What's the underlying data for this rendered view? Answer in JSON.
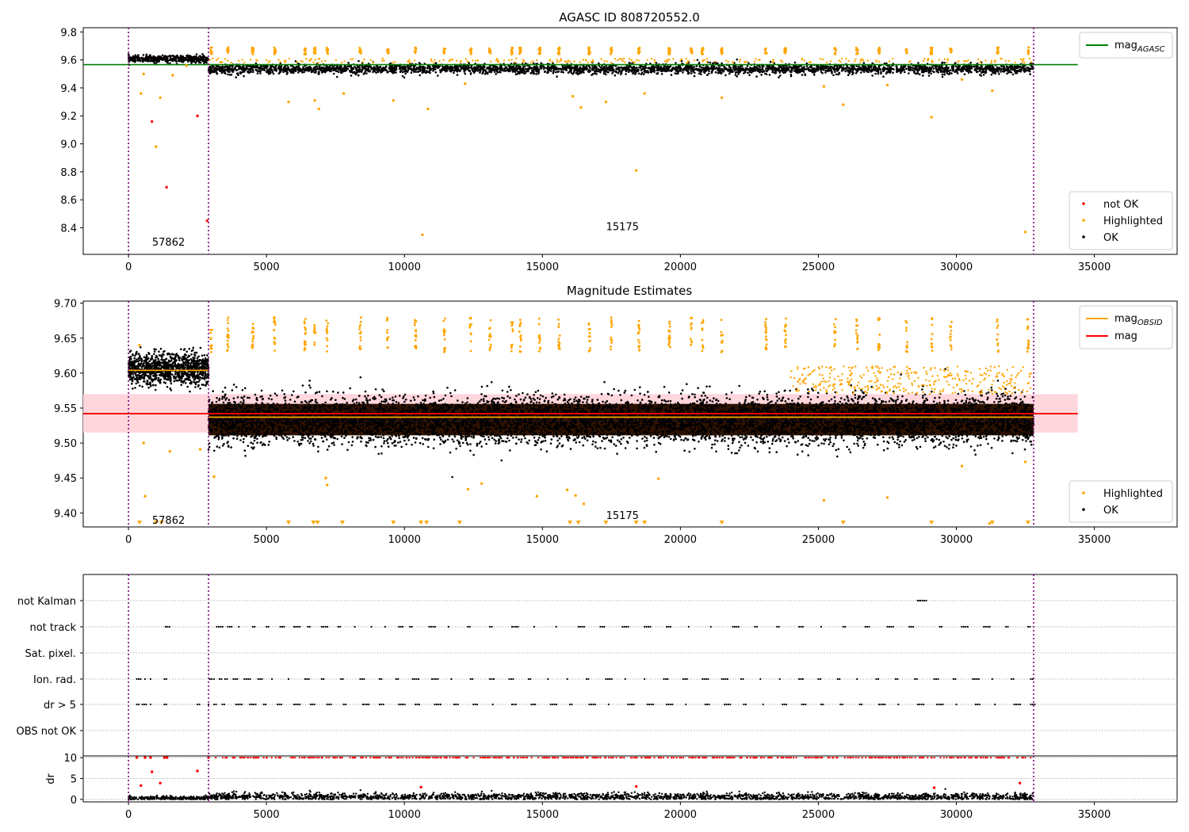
{
  "figure": {
    "title": "AGASC ID 808720552.0",
    "title_middle": "Magnitude Estimates"
  },
  "colors": {
    "ok": "#000000",
    "highlighted": "#ffa500",
    "not_ok": "#ff0000",
    "mag_agasc": "#008000",
    "mag": "#ff0000",
    "mag_obsid": "#ffa500",
    "mag_band": "#ffd6dc",
    "obs_boundary": "#800080",
    "grid": "#b0b0b0"
  },
  "chart_data": [
    {
      "id": "top",
      "type": "scatter",
      "title": "AGASC ID 808720552.0",
      "xlabel": "",
      "ylabel": "",
      "xlim": [
        -1640,
        38000
      ],
      "ylim": [
        8.21,
        9.83
      ],
      "x_ticks": [
        0,
        5000,
        10000,
        15000,
        20000,
        25000,
        30000,
        35000
      ],
      "x_tick_labels": [
        "0",
        "5000",
        "10000",
        "15000",
        "20000",
        "25000",
        "30000",
        "35000"
      ],
      "y_ticks": [
        8.4,
        8.6,
        8.8,
        9.0,
        9.2,
        9.4,
        9.6,
        9.8
      ],
      "y_tick_labels": [
        "8.4",
        "8.6",
        "8.8",
        "9.0",
        "9.2",
        "9.4",
        "9.6",
        "9.8"
      ],
      "obs_boundaries": [
        0,
        2900,
        32800
      ],
      "obs_labels": [
        {
          "text": "57862",
          "x": 1450,
          "y": 8.3
        },
        {
          "text": "15175",
          "x": 17900,
          "y": 8.41
        }
      ],
      "lines": [
        {
          "name": "mag_AGASC",
          "color": "#008000",
          "y": 9.566,
          "x0": -1640,
          "x1": 34400
        }
      ],
      "legend_lines": {
        "position": "top-right",
        "entries": [
          {
            "label": "mag",
            "sub": "AGASC",
            "color": "#008000"
          }
        ]
      },
      "legend_points": {
        "position": "bottom-right",
        "entries": [
          {
            "label": "not OK",
            "color": "#ff0000"
          },
          {
            "label": "Highlighted",
            "color": "#ffa500"
          },
          {
            "label": "OK",
            "color": "#000000"
          }
        ]
      },
      "clouds": [
        {
          "series": "OK",
          "x0": 0,
          "x1": 2900,
          "center": 9.607,
          "spread": 0.012,
          "count": 420
        },
        {
          "series": "OK",
          "x0": 2900,
          "x1": 32800,
          "center": 9.535,
          "spread": 0.018,
          "count": 3200
        }
      ],
      "highlight_clusters_y": [
        9.64,
        9.69
      ],
      "highlight_clusters_x": [
        3000,
        3600,
        4500,
        5300,
        6400,
        6750,
        7200,
        8400,
        9400,
        10400,
        11450,
        12400,
        13100,
        13900,
        14200,
        14900,
        15600,
        16700,
        17500,
        18500,
        19600,
        20400,
        20800,
        21500,
        23100,
        23800,
        25600,
        26400,
        27200,
        28200,
        29100,
        29800,
        31500,
        32600
      ],
      "points": [
        {
          "series": "not OK",
          "x": 850,
          "y": 9.16
        },
        {
          "series": "not OK",
          "x": 1380,
          "y": 8.69
        },
        {
          "series": "not OK",
          "x": 2500,
          "y": 9.2
        },
        {
          "series": "not OK",
          "x": 2850,
          "y": 8.45
        },
        {
          "series": "Highlighted",
          "x": 450,
          "y": 9.36
        },
        {
          "series": "Highlighted",
          "x": 550,
          "y": 9.5
        },
        {
          "series": "Highlighted",
          "x": 1000,
          "y": 8.98
        },
        {
          "series": "Highlighted",
          "x": 1150,
          "y": 9.33
        },
        {
          "series": "Highlighted",
          "x": 1600,
          "y": 9.49
        },
        {
          "series": "Highlighted",
          "x": 2100,
          "y": 9.56
        },
        {
          "series": "Highlighted",
          "x": 5800,
          "y": 9.3
        },
        {
          "series": "Highlighted",
          "x": 6750,
          "y": 9.31
        },
        {
          "series": "Highlighted",
          "x": 6900,
          "y": 9.25
        },
        {
          "series": "Highlighted",
          "x": 7800,
          "y": 9.36
        },
        {
          "series": "Highlighted",
          "x": 9600,
          "y": 9.31
        },
        {
          "series": "Highlighted",
          "x": 10650,
          "y": 8.35
        },
        {
          "series": "Highlighted",
          "x": 10850,
          "y": 9.25
        },
        {
          "series": "Highlighted",
          "x": 12200,
          "y": 9.43
        },
        {
          "series": "Highlighted",
          "x": 16100,
          "y": 9.34
        },
        {
          "series": "Highlighted",
          "x": 16400,
          "y": 9.26
        },
        {
          "series": "Highlighted",
          "x": 17300,
          "y": 9.3
        },
        {
          "series": "Highlighted",
          "x": 18400,
          "y": 8.81
        },
        {
          "series": "Highlighted",
          "x": 18700,
          "y": 9.36
        },
        {
          "series": "Highlighted",
          "x": 21500,
          "y": 9.33
        },
        {
          "series": "Highlighted",
          "x": 25200,
          "y": 9.41
        },
        {
          "series": "Highlighted",
          "x": 25900,
          "y": 9.28
        },
        {
          "series": "Highlighted",
          "x": 27500,
          "y": 9.42
        },
        {
          "series": "Highlighted",
          "x": 29100,
          "y": 9.19
        },
        {
          "series": "Highlighted",
          "x": 30200,
          "y": 9.46
        },
        {
          "series": "Highlighted",
          "x": 31300,
          "y": 9.38
        },
        {
          "series": "Highlighted",
          "x": 32500,
          "y": 8.37
        }
      ]
    },
    {
      "id": "middle",
      "type": "scatter",
      "title": "Magnitude Estimates",
      "xlabel": "",
      "ylabel": "",
      "xlim": [
        -1640,
        38000
      ],
      "ylim": [
        9.38,
        9.703
      ],
      "x_ticks": [
        0,
        5000,
        10000,
        15000,
        20000,
        25000,
        30000,
        35000
      ],
      "x_tick_labels": [
        "0",
        "5000",
        "10000",
        "15000",
        "20000",
        "25000",
        "30000",
        "35000"
      ],
      "y_ticks": [
        9.4,
        9.45,
        9.5,
        9.55,
        9.6,
        9.65,
        9.7
      ],
      "y_tick_labels": [
        "9.40",
        "9.45",
        "9.50",
        "9.55",
        "9.60",
        "9.65",
        "9.70"
      ],
      "obs_boundaries": [
        0,
        2900,
        32800
      ],
      "obs_labels": [
        {
          "text": "57862",
          "x": 1450,
          "y": 9.39
        },
        {
          "text": "15175",
          "x": 17900,
          "y": 9.397
        }
      ],
      "band": {
        "y0": 9.515,
        "y1": 9.57,
        "x0": -1640,
        "x1": 34400,
        "color": "#ffd6dc"
      },
      "lines": [
        {
          "name": "mag",
          "color": "#ff0000",
          "y": 9.542,
          "x0": -1640,
          "x1": 34400
        },
        {
          "name": "mag_OBSID",
          "color": "#ffa500",
          "y": 9.604,
          "x0": 0,
          "x1": 2900
        },
        {
          "name": "mag_OBSID",
          "color": "#ffa500",
          "y": 9.537,
          "x0": 2900,
          "x1": 32800
        }
      ],
      "legend_lines": {
        "position": "top-right",
        "entries": [
          {
            "label": "mag",
            "sub": "OBSID",
            "color": "#ffa500"
          },
          {
            "label": "mag",
            "sub": "",
            "color": "#ff0000"
          }
        ]
      },
      "legend_points": {
        "position": "bottom-right",
        "entries": [
          {
            "label": "Highlighted",
            "color": "#ffa500"
          },
          {
            "label": "OK",
            "color": "#000000"
          }
        ]
      },
      "clouds": [
        {
          "series": "OK",
          "x0": 0,
          "x1": 2900,
          "center": 9.606,
          "spread": 0.011,
          "count": 1100
        },
        {
          "series": "OK",
          "x0": 2900,
          "x1": 32800,
          "center": 9.533,
          "spread": 0.017,
          "count": 7000
        }
      ],
      "dense_band": {
        "x0": 2900,
        "x1": 32800,
        "y0": 9.511,
        "y1": 9.556,
        "color": "#2e1200"
      },
      "highlight_clusters_y": [
        9.63,
        9.68
      ],
      "highlight_clusters_x": [
        3000,
        3600,
        4500,
        5300,
        6400,
        6750,
        7200,
        8400,
        9400,
        10400,
        11450,
        12400,
        13100,
        13900,
        14200,
        14900,
        15600,
        16700,
        17500,
        18500,
        19600,
        20400,
        20800,
        21500,
        23100,
        23800,
        25600,
        26400,
        27200,
        28200,
        29100,
        29800,
        31500,
        32600
      ],
      "low_markers": [
        400,
        1000,
        1200,
        5800,
        6700,
        6850,
        7750,
        9600,
        10600,
        10800,
        12000,
        16000,
        16300,
        17300,
        18400,
        18700,
        21500,
        25900,
        29100,
        31300,
        32600
      ],
      "points": [
        {
          "series": "Highlighted",
          "x": 400,
          "y": 9.64
        },
        {
          "series": "Highlighted",
          "x": 550,
          "y": 9.5
        },
        {
          "series": "Highlighted",
          "x": 600,
          "y": 9.424
        },
        {
          "series": "Highlighted",
          "x": 1500,
          "y": 9.488
        },
        {
          "series": "Highlighted",
          "x": 2600,
          "y": 9.491
        },
        {
          "series": "Highlighted",
          "x": 3100,
          "y": 9.452
        },
        {
          "series": "Highlighted",
          "x": 7150,
          "y": 9.45
        },
        {
          "series": "Highlighted",
          "x": 7200,
          "y": 9.44
        },
        {
          "series": "Highlighted",
          "x": 12300,
          "y": 9.434
        },
        {
          "series": "Highlighted",
          "x": 12800,
          "y": 9.442
        },
        {
          "series": "Highlighted",
          "x": 14800,
          "y": 9.424
        },
        {
          "series": "Highlighted",
          "x": 15900,
          "y": 9.433
        },
        {
          "series": "Highlighted",
          "x": 16200,
          "y": 9.425
        },
        {
          "series": "Highlighted",
          "x": 16500,
          "y": 9.413
        },
        {
          "series": "Highlighted",
          "x": 19200,
          "y": 9.449
        },
        {
          "series": "Highlighted",
          "x": 25200,
          "y": 9.418
        },
        {
          "series": "Highlighted",
          "x": 27500,
          "y": 9.422
        },
        {
          "series": "Highlighted",
          "x": 30200,
          "y": 9.467
        },
        {
          "series": "Highlighted",
          "x": 31200,
          "y": 9.385
        },
        {
          "series": "Highlighted",
          "x": 32500,
          "y": 9.473
        }
      ]
    },
    {
      "id": "flags",
      "type": "scatter",
      "xlim": [
        -1640,
        38000
      ],
      "categories": [
        "not Kalman",
        "not track",
        "Sat. pixel.",
        "Ion. rad.",
        "dr > 5",
        "OBS not OK"
      ],
      "flag_points": {
        "not Kalman": [
          28600,
          28700
        ],
        "not track": [
          1350,
          3200,
          3600,
          4000,
          4500,
          5000,
          5500,
          6000,
          6500,
          7000,
          7600,
          8200,
          8800,
          9300,
          9800,
          10200,
          10900,
          11600,
          12300,
          13100,
          13900,
          14700,
          15500,
          16300,
          17100,
          17900,
          18700,
          19500,
          20300,
          21100,
          21900,
          22700,
          23500,
          24300,
          25100,
          25900,
          26700,
          27500,
          28300,
          29400,
          30200,
          31000,
          31800,
          32600
        ],
        "Ion. rad.": [
          300,
          600,
          800,
          1300,
          2950,
          3100,
          3300,
          3500,
          3800,
          4200,
          4700,
          5200,
          5800,
          6400,
          7000,
          7700,
          8400,
          9100,
          9700,
          10300,
          11000,
          11700,
          12400,
          13100,
          13800,
          14500,
          15200,
          15900,
          16600,
          17300,
          18000,
          18700,
          19400,
          20100,
          20800,
          21500,
          22200,
          22900,
          23600,
          24300,
          25000,
          25700,
          26400,
          27100,
          27800,
          28500,
          29200,
          29900,
          30600,
          31300,
          32000,
          32700
        ],
        "dr > 5": [
          300,
          500,
          800,
          1300,
          2500,
          2900,
          3100,
          3400,
          3900,
          4400,
          4900,
          5400,
          6000,
          6600,
          7200,
          7800,
          8500,
          9100,
          9800,
          10400,
          11100,
          11800,
          12500,
          13200,
          13900,
          14600,
          15300,
          16000,
          16700,
          17400,
          18100,
          18800,
          19500,
          20200,
          20900,
          21600,
          22300,
          23000,
          23700,
          24400,
          25100,
          25800,
          26500,
          27200,
          27900,
          28600,
          29300,
          30000,
          30700,
          31400,
          32100,
          32700
        ]
      },
      "obs_boundaries": [
        0,
        2900,
        32800
      ]
    },
    {
      "id": "dr",
      "type": "scatter",
      "xlim": [
        -1640,
        38000
      ],
      "ylim": [
        -0.6,
        10.4
      ],
      "ylabel": "dr",
      "x_ticks": [
        0,
        5000,
        10000,
        15000,
        20000,
        25000,
        30000,
        35000
      ],
      "x_tick_labels": [
        "0",
        "5000",
        "10000",
        "15000",
        "20000",
        "25000",
        "30000",
        "35000"
      ],
      "y_ticks": [
        0,
        5,
        10
      ],
      "y_tick_labels": [
        "0",
        "5",
        "10"
      ],
      "obs_boundaries": [
        0,
        2900,
        32800
      ],
      "clouds": [
        {
          "series": "OK",
          "x0": 0,
          "x1": 2900,
          "center": 0.3,
          "spread": 0.25,
          "count": 250
        },
        {
          "series": "OK",
          "x0": 2900,
          "x1": 32800,
          "center": 0.6,
          "spread": 0.45,
          "count": 2200
        }
      ],
      "capped_clipped": {
        "series": "not OK",
        "y": 10,
        "x0": 3000,
        "x1": 32800,
        "count": 500
      },
      "points": [
        {
          "series": "not OK",
          "x": 300,
          "y": 10
        },
        {
          "series": "not OK",
          "x": 450,
          "y": 3.3
        },
        {
          "series": "not OK",
          "x": 600,
          "y": 10
        },
        {
          "series": "not OK",
          "x": 800,
          "y": 10
        },
        {
          "series": "not OK",
          "x": 850,
          "y": 6.6
        },
        {
          "series": "not OK",
          "x": 1150,
          "y": 3.9
        },
        {
          "series": "not OK",
          "x": 1300,
          "y": 10
        },
        {
          "series": "not OK",
          "x": 1400,
          "y": 10
        },
        {
          "series": "not OK",
          "x": 2500,
          "y": 6.8
        },
        {
          "series": "not OK",
          "x": 2900,
          "y": 10
        },
        {
          "series": "not OK",
          "x": 10600,
          "y": 2.9
        },
        {
          "series": "not OK",
          "x": 18400,
          "y": 3.1
        },
        {
          "series": "not OK",
          "x": 29200,
          "y": 2.8
        },
        {
          "series": "not OK",
          "x": 32300,
          "y": 3.9
        }
      ]
    }
  ]
}
